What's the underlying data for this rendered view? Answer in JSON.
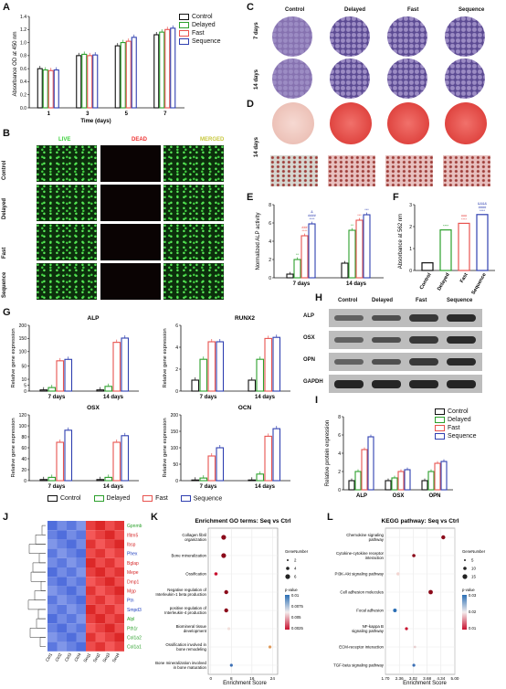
{
  "panels": {
    "A": "A",
    "B": "B",
    "C": "C",
    "D": "D",
    "E": "E",
    "F": "F",
    "G": "G",
    "H": "H",
    "I": "I",
    "J": "J",
    "K": "K",
    "L": "L"
  },
  "groups": [
    "Control",
    "Delayed",
    "Fast",
    "Sequence"
  ],
  "colors": {
    "control": "#111111",
    "delayed": "#2ca02c",
    "fast": "#e8534f",
    "sequence": "#2f3fb0"
  },
  "panelA": {
    "ylabel": "Absorbance OD at 450 nm",
    "xlabel": "Time (days)",
    "yticks": [
      "0.0",
      "0.2",
      "0.4",
      "0.6",
      "0.8",
      "1.0",
      "1.2",
      "1.4"
    ],
    "xticks": [
      "1",
      "3",
      "5",
      "7"
    ]
  },
  "panelB": {
    "col_labels": [
      "LIVE",
      "DEAD",
      "MERGED"
    ],
    "row_labels": [
      "Control",
      "Delayed",
      "Fast",
      "Sequence"
    ]
  },
  "panelC": {
    "row_labels": [
      "7 days",
      "14 days"
    ]
  },
  "panelD": {
    "row_label": "14 days"
  },
  "panelE": {
    "ylabel": "Normalized ALP activity",
    "yticks": [
      "0",
      "2",
      "4",
      "6",
      "8"
    ],
    "xticks": [
      "7 days",
      "14 days"
    ],
    "sig7": [
      "**",
      "###\n****",
      "&\n####\n****"
    ],
    "sig14": [
      "**",
      "***",
      "***"
    ]
  },
  "panelF": {
    "ylabel": "Absorbance at 562 nm",
    "yticks": [
      "0",
      "1",
      "2",
      "3"
    ],
    "sig": [
      "****",
      "###\n****",
      "&&&&\n####\n****"
    ]
  },
  "panelG": {
    "ylabel": "Relative gene expression",
    "xticks": [
      "7 days",
      "14 days"
    ],
    "subplots": [
      {
        "title": "ALP",
        "yticks": [
          "0",
          "5",
          "10",
          "50",
          "100",
          "150",
          "200"
        ]
      },
      {
        "title": "RUNX2",
        "yticks": [
          "0",
          "2",
          "4",
          "6"
        ]
      },
      {
        "title": "OSX",
        "yticks": [
          "0",
          "20",
          "40",
          "60",
          "80",
          "100",
          "120"
        ]
      },
      {
        "title": "OCN",
        "yticks": [
          "0",
          "50",
          "100",
          "150",
          "200"
        ]
      }
    ]
  },
  "panelH": {
    "rows": [
      "ALP",
      "OSX",
      "OPN",
      "GAPDH"
    ]
  },
  "panelI": {
    "ylabel": "Relative protein expression",
    "yticks": [
      "0",
      "2",
      "4",
      "6",
      "8"
    ],
    "xticks": [
      "ALP",
      "OSX",
      "OPN"
    ]
  },
  "panelJ": {
    "genes": [
      "Gpnmb",
      "Ifitm5",
      "Ibsp",
      "Phex",
      "Bglap",
      "Mepe",
      "Dmp1",
      "Mgp",
      "Ptn",
      "Smpd3",
      "Alpl",
      "Pth1r",
      "Col1a2",
      "Col1a1"
    ],
    "samples": [
      "Ctrl1",
      "Ctrl2",
      "Ctrl3",
      "Ctrl4",
      "Seq1",
      "Seq2",
      "Seq3",
      "Seq4"
    ]
  },
  "panelK": {
    "title": "Enrichment GO terms: Seq vs Ctrl",
    "xlabel": "Enrichment Score",
    "xticks": [
      "0",
      "8",
      "16",
      "24"
    ],
    "terms": [
      "Collagen fibril organization",
      "Bone mineralization",
      "Ossification",
      "Negative regulation of Interleukin-1 beta production",
      "positive regulation of Interleukin-4 production",
      "Biomineral tissue development",
      "Ossification involved in bone remodeling",
      "Bone mineralization involved in bone maturation"
    ],
    "legend_size_title": "GeneNumber",
    "legend_size": [
      "2",
      "4",
      "6"
    ],
    "legend_color_title": "p-value",
    "legend_color": [
      "0.01",
      "0.0075",
      "0.005",
      "0.0025"
    ]
  },
  "panelL": {
    "title": "KEGG pathway: Seq vs Ctrl",
    "xlabel": "Enrichment Score",
    "xticks": [
      "1.70",
      "2.36",
      "3.02",
      "3.68",
      "4.34",
      "5.00"
    ],
    "terms": [
      "Chemokine signaling pathway",
      "Cytokine-cytokine receptor interaction",
      "PI3K-Akt signaling pathway",
      "Cell adhesion molecules",
      "Focal adhesion",
      "NF-kappa B signaling pathway",
      "ECM-receptor interaction",
      "TGF-beta signaling pathway"
    ],
    "legend_size_title": "GeneNumber",
    "legend_size": [
      "5",
      "10",
      "15"
    ],
    "legend_color_title": "p-value",
    "legend_color": [
      "0.03",
      "0.02",
      "0.01"
    ]
  },
  "chart_data": [
    {
      "type": "bar",
      "ylabel": "Absorbance OD at 450 nm",
      "xlabel": "Time (days)",
      "categories": [
        "1",
        "3",
        "5",
        "7"
      ],
      "ylim": [
        0,
        1.4
      ],
      "series": [
        {
          "name": "Control",
          "values": [
            0.6,
            0.8,
            0.95,
            1.12
          ]
        },
        {
          "name": "Delayed",
          "values": [
            0.58,
            0.82,
            1.0,
            1.16
          ]
        },
        {
          "name": "Fast",
          "values": [
            0.57,
            0.8,
            1.02,
            1.2
          ]
        },
        {
          "name": "Sequence",
          "values": [
            0.58,
            0.81,
            1.08,
            1.22
          ]
        }
      ]
    },
    {
      "type": "bar",
      "ylabel": "Normalized ALP activity",
      "categories": [
        "7 days",
        "14 days"
      ],
      "ylim": [
        0,
        8
      ],
      "series": [
        {
          "name": "Control",
          "values": [
            0.4,
            1.6
          ]
        },
        {
          "name": "Delayed",
          "values": [
            2.0,
            5.2
          ]
        },
        {
          "name": "Fast",
          "values": [
            4.6,
            6.3
          ]
        },
        {
          "name": "Sequence",
          "values": [
            5.9,
            6.9
          ]
        }
      ]
    },
    {
      "type": "bar",
      "ylabel": "Absorbance at 562 nm",
      "categories": [
        "Control",
        "Delayed",
        "Fast",
        "Sequence"
      ],
      "ylim": [
        0,
        3
      ],
      "values": [
        0.35,
        1.85,
        2.15,
        2.55
      ]
    },
    {
      "type": "bar",
      "title": "ALP",
      "ylabel": "Relative gene expression",
      "categories": [
        "7 days",
        "14 days"
      ],
      "series": [
        {
          "name": "Control",
          "values": [
            1,
            1
          ]
        },
        {
          "name": "Delayed",
          "values": [
            3,
            4
          ]
        },
        {
          "name": "Fast",
          "values": [
            75,
            140
          ]
        },
        {
          "name": "Sequence",
          "values": [
            80,
            155
          ]
        }
      ]
    },
    {
      "type": "bar",
      "title": "RUNX2",
      "ylabel": "Relative gene expression",
      "categories": [
        "7 days",
        "14 days"
      ],
      "ylim": [
        0,
        6
      ],
      "series": [
        {
          "name": "Control",
          "values": [
            1.0,
            1.0
          ]
        },
        {
          "name": "Delayed",
          "values": [
            2.9,
            2.9
          ]
        },
        {
          "name": "Fast",
          "values": [
            4.5,
            4.8
          ]
        },
        {
          "name": "Sequence",
          "values": [
            4.5,
            4.9
          ]
        }
      ]
    },
    {
      "type": "bar",
      "title": "OSX",
      "ylabel": "Relative gene expression",
      "categories": [
        "7 days",
        "14 days"
      ],
      "ylim": [
        0,
        120
      ],
      "series": [
        {
          "name": "Control",
          "values": [
            2,
            2
          ]
        },
        {
          "name": "Delayed",
          "values": [
            6,
            6
          ]
        },
        {
          "name": "Fast",
          "values": [
            70,
            70
          ]
        },
        {
          "name": "Sequence",
          "values": [
            92,
            82
          ]
        }
      ]
    },
    {
      "type": "bar",
      "title": "OCN",
      "ylabel": "Relative gene expression",
      "categories": [
        "7 days",
        "14 days"
      ],
      "ylim": [
        0,
        200
      ],
      "series": [
        {
          "name": "Control",
          "values": [
            2,
            2
          ]
        },
        {
          "name": "Delayed",
          "values": [
            8,
            20
          ]
        },
        {
          "name": "Fast",
          "values": [
            75,
            135
          ]
        },
        {
          "name": "Sequence",
          "values": [
            100,
            158
          ]
        }
      ]
    },
    {
      "type": "bar",
      "ylabel": "Relative protein expression",
      "categories": [
        "ALP",
        "OSX",
        "OPN"
      ],
      "ylim": [
        0,
        8
      ],
      "series": [
        {
          "name": "Control",
          "values": [
            1.0,
            1.0,
            1.0
          ]
        },
        {
          "name": "Delayed",
          "values": [
            2.0,
            1.3,
            2.0
          ]
        },
        {
          "name": "Fast",
          "values": [
            4.4,
            2.0,
            2.9
          ]
        },
        {
          "name": "Sequence",
          "values": [
            5.8,
            2.2,
            3.1
          ]
        }
      ]
    },
    {
      "type": "scatter",
      "title": "Enrichment GO terms: Seq vs Ctrl",
      "xlabel": "Enrichment Score",
      "xlim": [
        0,
        26
      ],
      "categories": [
        "Collagen fibril organization",
        "Bone mineralization",
        "Ossification",
        "Negative regulation of Interleukin-1 beta production",
        "positive regulation of Interleukin-4 production",
        "Biomineral tissue development",
        "Ossification involved in bone remodeling",
        "Bone mineralization involved in bone maturation"
      ],
      "values": [
        5,
        5,
        2,
        6,
        6,
        7,
        23,
        8
      ]
    },
    {
      "type": "scatter",
      "title": "KEGG pathway: Seq vs Ctrl",
      "xlabel": "Enrichment Score",
      "xlim": [
        1.7,
        5.0
      ],
      "categories": [
        "Chemokine signaling pathway",
        "Cytokine-cytokine receptor interaction",
        "PI3K-Akt signaling pathway",
        "Cell adhesion molecules",
        "Focal adhesion",
        "NF-kappa B signaling pathway",
        "ECM-receptor interaction",
        "TGF-beta signaling pathway"
      ],
      "values": [
        4.45,
        3.05,
        2.3,
        3.85,
        2.15,
        2.7,
        3.1,
        3.05
      ]
    }
  ]
}
